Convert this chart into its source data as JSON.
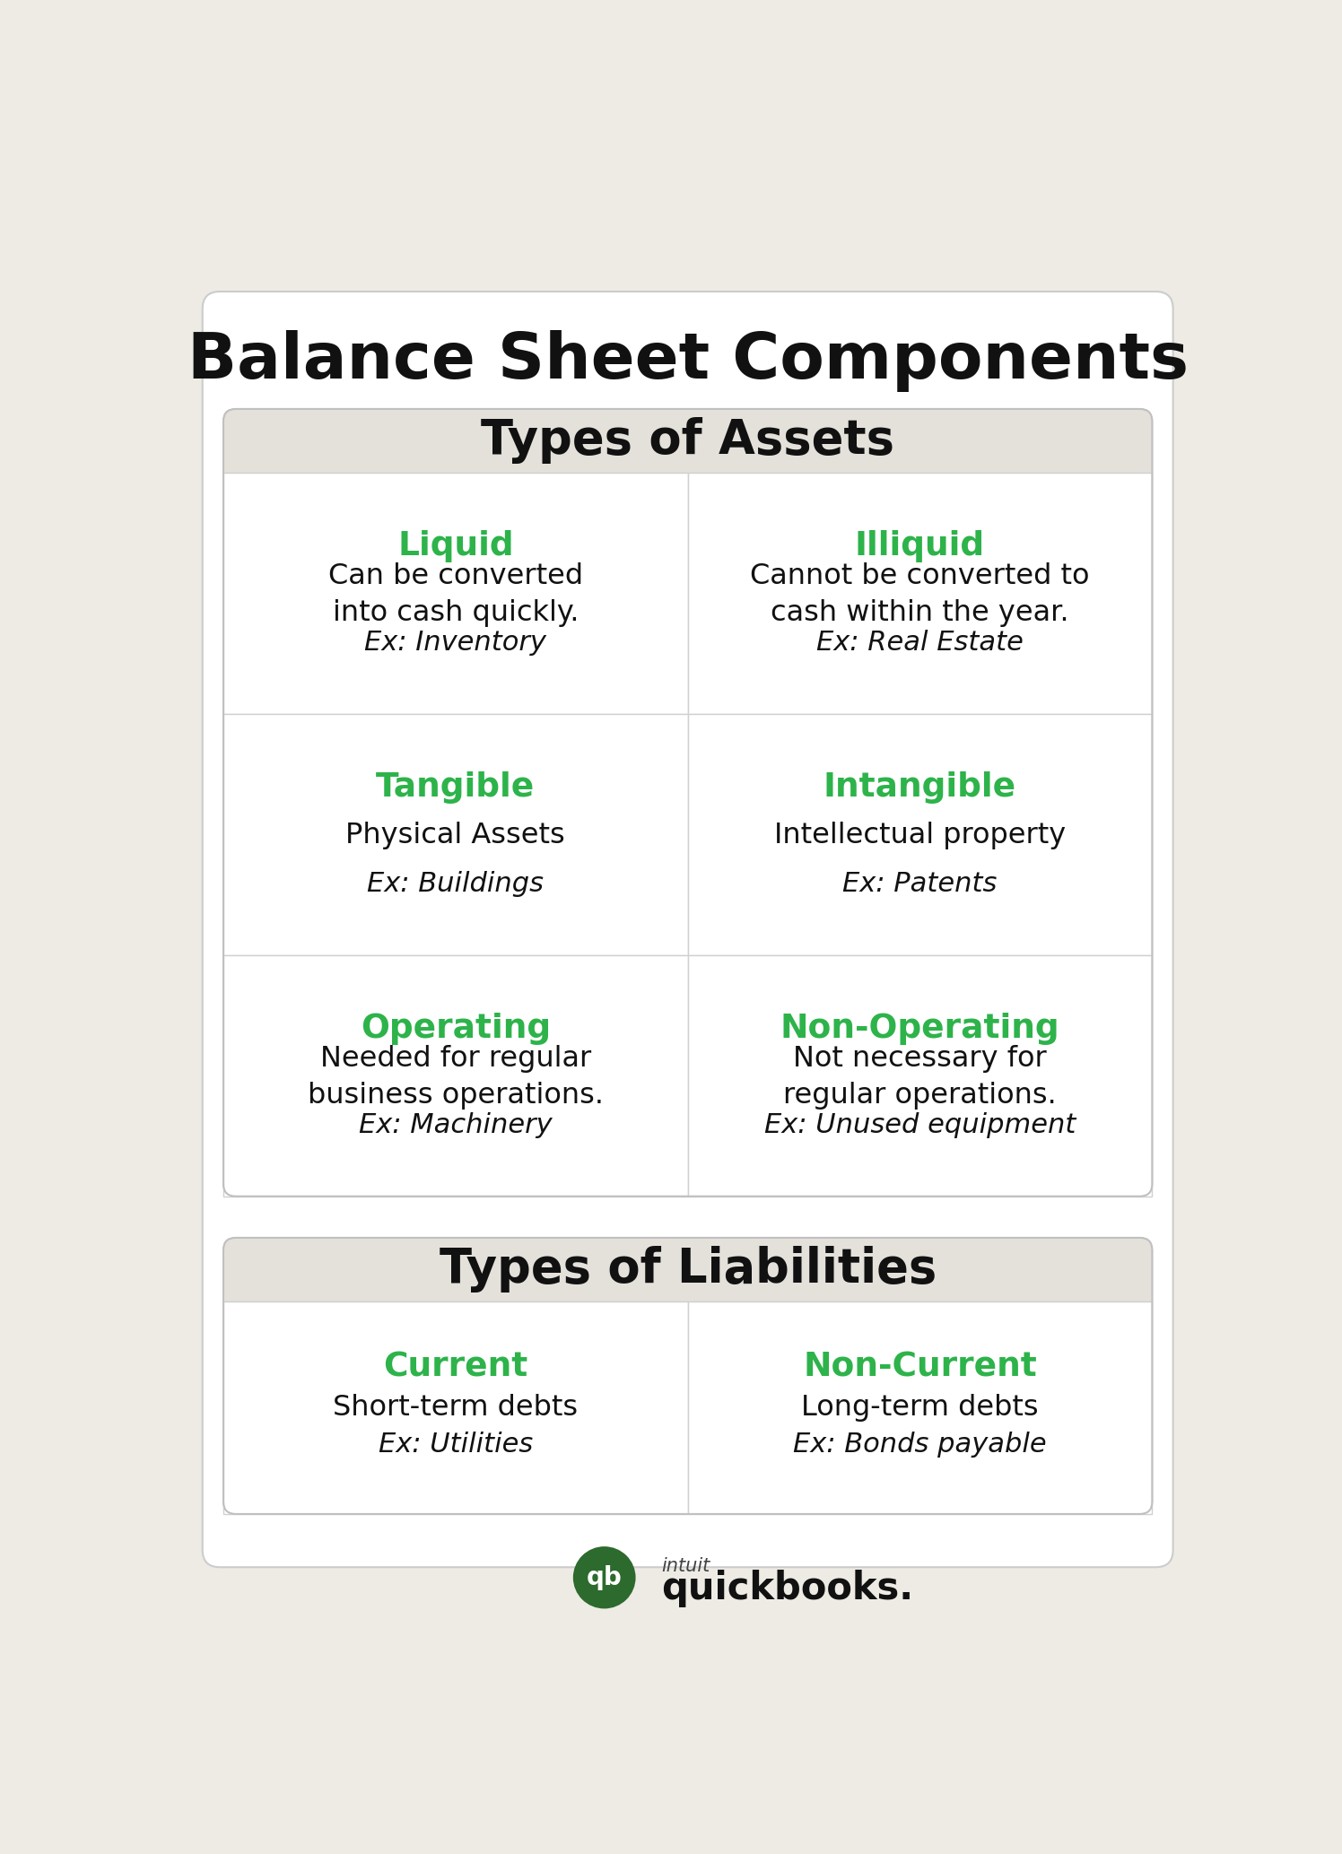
{
  "title": "Balance Sheet Components",
  "bg_color": "#eeebe5",
  "card_bg": "#ffffff",
  "section_header_bg": "#e8e5df",
  "green_color": "#2db34a",
  "black_color": "#111111",
  "border_color": "#d8d8d8",
  "assets_section_title": "Types of Assets",
  "liabilities_section_title": "Types of Liabilities",
  "assets": [
    {
      "title": "Liquid",
      "desc": "Can be converted\ninto cash quickly.",
      "example": "Ex: Inventory"
    },
    {
      "title": "Illiquid",
      "desc": "Cannot be converted to\ncash within the year.",
      "example": "Ex: Real Estate"
    },
    {
      "title": "Tangible",
      "desc": "Physical Assets",
      "example": "Ex: Buildings"
    },
    {
      "title": "Intangible",
      "desc": "Intellectual property",
      "example": "Ex: Patents"
    },
    {
      "title": "Operating",
      "desc": "Needed for regular\nbusiness operations.",
      "example": "Ex: Machinery"
    },
    {
      "title": "Non-Operating",
      "desc": "Not necessary for\nregular operations.",
      "example": "Ex: Unused equipment"
    }
  ],
  "liabilities": [
    {
      "title": "Current",
      "desc": "Short-term debts",
      "example": "Ex: Utilities"
    },
    {
      "title": "Non-Current",
      "desc": "Long-term debts",
      "example": "Ex: Bonds payable"
    }
  ],
  "fig_width": 14.96,
  "fig_height": 20.67,
  "dpi": 100
}
